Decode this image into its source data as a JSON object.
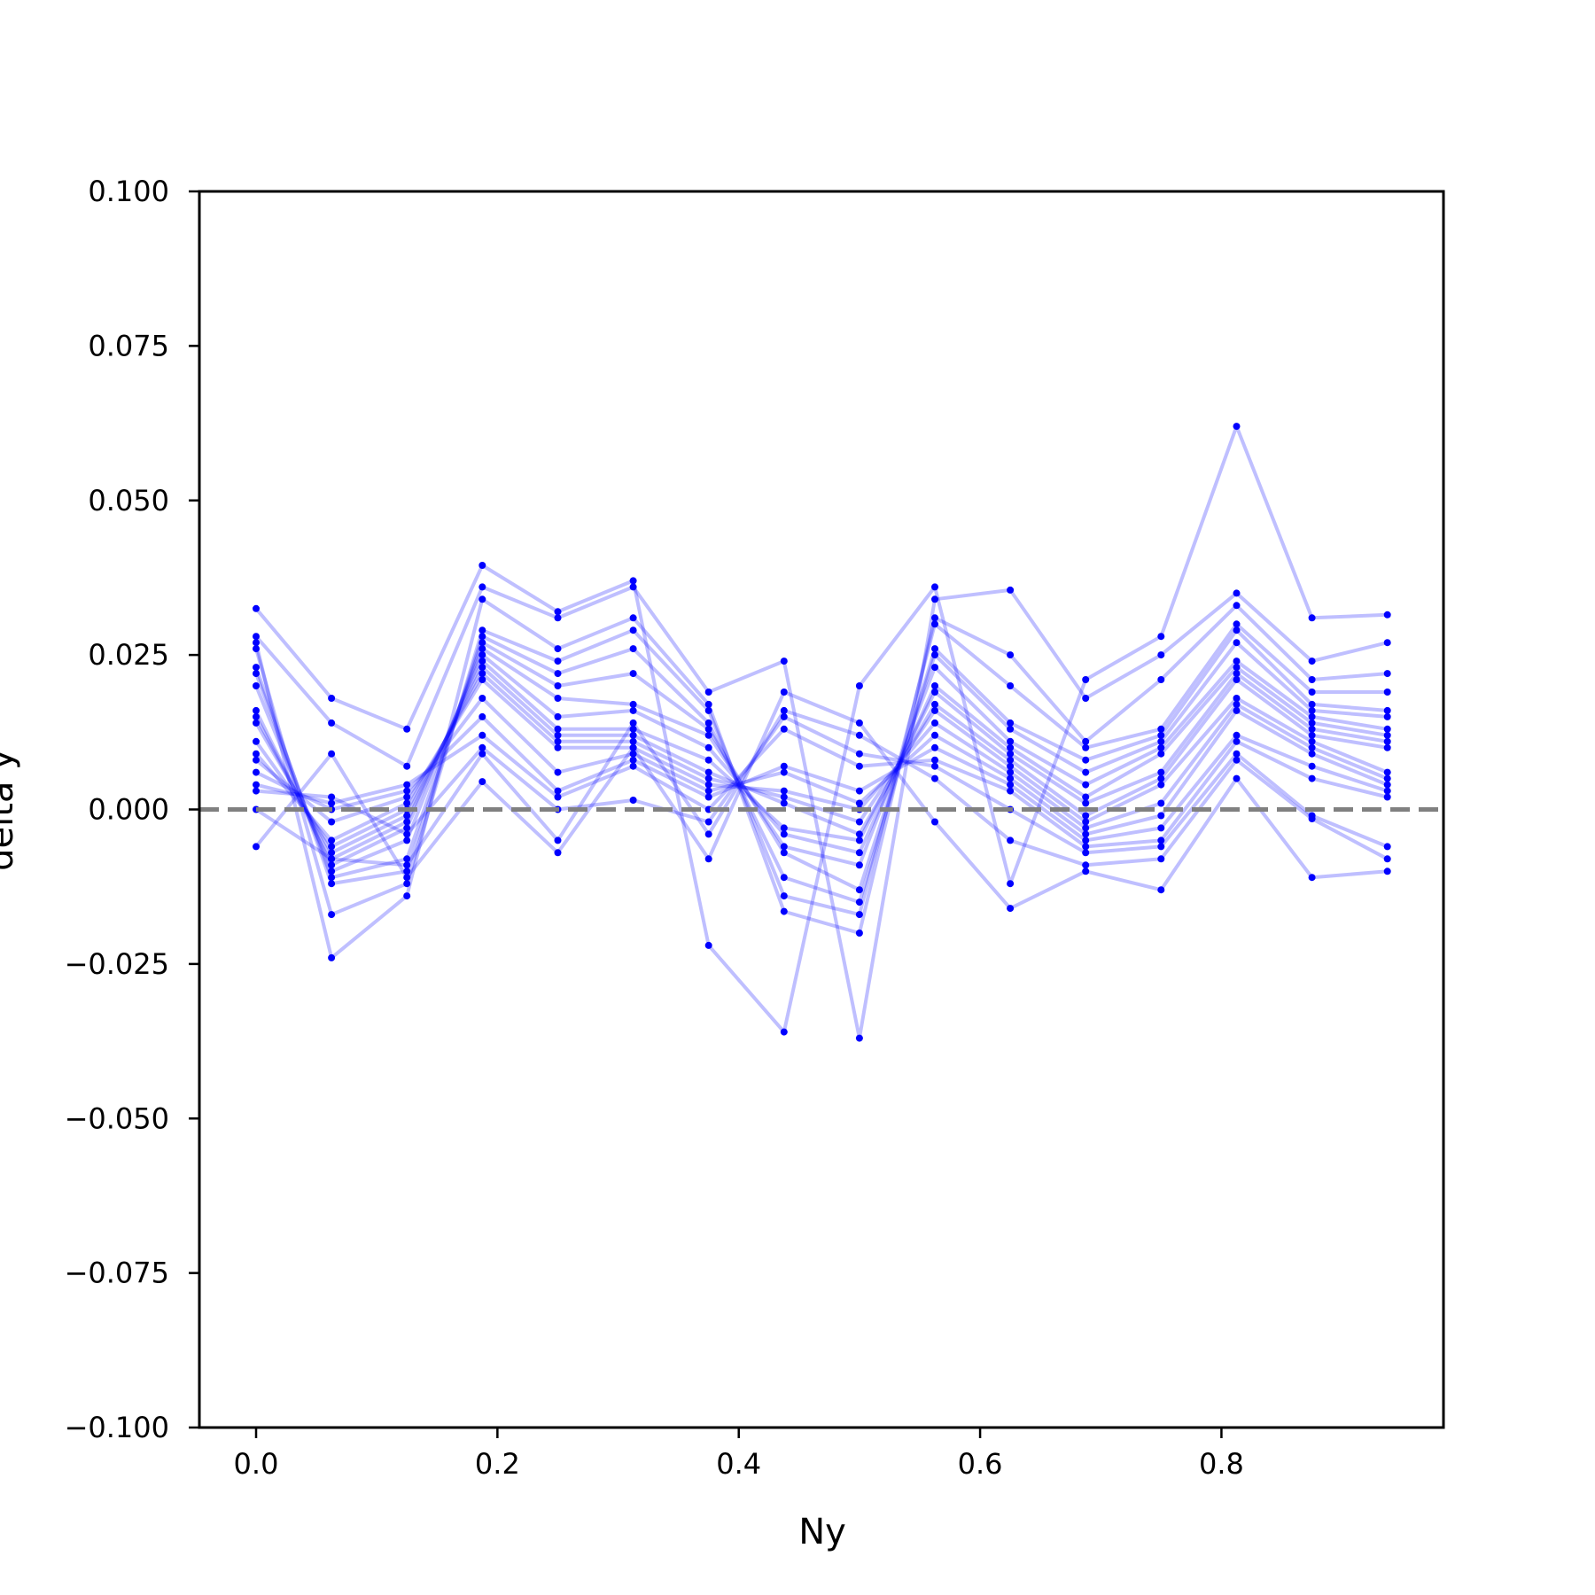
{
  "chart_data": {
    "type": "line",
    "xlabel": "Ny",
    "ylabel": "delta y",
    "xlim": [
      -0.047,
      0.984
    ],
    "ylim": [
      -0.1,
      0.1
    ],
    "xticks": [
      {
        "value": 0.0,
        "label": "0.0"
      },
      {
        "value": 0.2,
        "label": "0.2"
      },
      {
        "value": 0.4,
        "label": "0.4"
      },
      {
        "value": 0.6,
        "label": "0.6"
      },
      {
        "value": 0.8,
        "label": "0.8"
      }
    ],
    "yticks": [
      {
        "value": 0.1,
        "label": "0.100"
      },
      {
        "value": 0.075,
        "label": "0.075"
      },
      {
        "value": 0.05,
        "label": "0.050"
      },
      {
        "value": 0.025,
        "label": "0.025"
      },
      {
        "value": 0.0,
        "label": "0.000"
      },
      {
        "value": -0.025,
        "label": "−0.025"
      },
      {
        "value": -0.05,
        "label": "−0.050"
      },
      {
        "value": -0.075,
        "label": "−0.075"
      },
      {
        "value": -0.1,
        "label": "−0.100"
      }
    ],
    "grid": false,
    "line_color": "#0000ff",
    "marker_color": "#0000ff",
    "reference_line": {
      "y": 0.0,
      "style": "dashed",
      "color": "#808080"
    },
    "x": [
      0.0,
      0.0625,
      0.125,
      0.1875,
      0.25,
      0.3125,
      0.375,
      0.4375,
      0.5,
      0.5625,
      0.625,
      0.6875,
      0.75,
      0.8125,
      0.875,
      0.9375
    ],
    "series": [
      {
        "values": [
          0.0325,
          0.018,
          0.013,
          0.0395,
          0.032,
          0.037,
          -0.022,
          -0.036,
          0.02,
          0.036,
          -0.012,
          0.021,
          0.028,
          0.062,
          0.031,
          0.0315
        ]
      },
      {
        "values": [
          0.028,
          0.014,
          0.007,
          0.036,
          0.031,
          0.036,
          0.019,
          0.024,
          -0.037,
          0.034,
          0.0355,
          0.018,
          0.025,
          0.035,
          0.024,
          0.027
        ]
      },
      {
        "values": [
          0.027,
          -0.024,
          -0.014,
          0.034,
          0.026,
          0.031,
          0.017,
          -0.0165,
          -0.02,
          0.031,
          0.025,
          0.011,
          0.021,
          0.033,
          0.021,
          0.022
        ]
      },
      {
        "values": [
          0.026,
          -0.017,
          -0.012,
          0.029,
          0.024,
          0.029,
          0.016,
          -0.014,
          -0.017,
          0.03,
          0.02,
          0.01,
          0.013,
          0.03,
          0.019,
          0.019
        ]
      },
      {
        "values": [
          0.023,
          -0.012,
          -0.01,
          0.028,
          0.022,
          0.026,
          0.014,
          -0.011,
          -0.015,
          0.026,
          0.014,
          0.008,
          0.012,
          0.029,
          0.017,
          0.016
        ]
      },
      {
        "values": [
          0.022,
          -0.011,
          -0.008,
          0.027,
          0.02,
          0.022,
          0.013,
          -0.007,
          -0.013,
          0.025,
          0.013,
          0.006,
          0.011,
          0.027,
          0.016,
          0.015
        ]
      },
      {
        "values": [
          0.02,
          -0.01,
          -0.005,
          0.026,
          0.018,
          0.017,
          0.012,
          -0.006,
          -0.009,
          0.023,
          0.011,
          0.004,
          0.01,
          0.024,
          0.015,
          0.013
        ]
      },
      {
        "values": [
          0.016,
          -0.009,
          -0.003,
          0.025,
          0.015,
          0.016,
          0.01,
          -0.004,
          -0.007,
          0.02,
          0.01,
          0.002,
          0.009,
          0.023,
          0.014,
          0.012
        ]
      },
      {
        "values": [
          0.015,
          -0.008,
          -0.002,
          0.024,
          0.013,
          0.013,
          0.008,
          -0.003,
          -0.005,
          0.019,
          0.009,
          0.001,
          0.006,
          0.022,
          0.013,
          0.011
        ]
      },
      {
        "values": [
          0.014,
          -0.007,
          -0.001,
          0.023,
          0.012,
          0.012,
          0.006,
          0.001,
          -0.004,
          0.017,
          0.008,
          -0.001,
          0.005,
          0.021,
          0.012,
          0.01
        ]
      },
      {
        "values": [
          0.011,
          -0.006,
          0.0,
          0.022,
          0.011,
          0.011,
          0.005,
          0.002,
          -0.002,
          0.016,
          0.007,
          -0.002,
          0.004,
          0.018,
          0.011,
          0.006
        ]
      },
      {
        "values": [
          0.009,
          -0.005,
          0.001,
          0.021,
          0.01,
          0.01,
          0.004,
          0.003,
          0.0,
          0.014,
          0.006,
          -0.003,
          0.001,
          0.017,
          0.01,
          0.005
        ]
      },
      {
        "values": [
          0.008,
          -0.002,
          0.002,
          0.018,
          0.006,
          0.009,
          0.003,
          0.006,
          0.001,
          0.012,
          0.005,
          -0.004,
          -0.001,
          0.016,
          0.009,
          0.004
        ]
      },
      {
        "values": [
          0.006,
          0.0,
          0.003,
          0.015,
          0.003,
          0.008,
          0.002,
          0.007,
          0.003,
          0.01,
          0.004,
          -0.005,
          -0.003,
          0.012,
          0.007,
          0.003
        ]
      },
      {
        "values": [
          0.004,
          0.001,
          0.004,
          0.012,
          0.002,
          0.007,
          0.0,
          0.013,
          0.007,
          0.008,
          0.003,
          -0.006,
          -0.005,
          0.011,
          0.005,
          0.002
        ]
      },
      {
        "values": [
          0.003,
          0.002,
          -0.004,
          0.01,
          0.0,
          0.0015,
          -0.002,
          0.015,
          0.009,
          0.007,
          0.0,
          -0.007,
          -0.006,
          0.009,
          -0.001,
          -0.006
        ]
      },
      {
        "values": [
          0.0,
          -0.008,
          -0.009,
          0.009,
          -0.005,
          0.014,
          -0.004,
          0.016,
          0.012,
          0.005,
          -0.005,
          -0.009,
          -0.008,
          0.008,
          -0.0015,
          -0.008
        ]
      },
      {
        "values": [
          -0.006,
          0.009,
          -0.011,
          0.0045,
          -0.007,
          0.01,
          -0.008,
          0.019,
          0.014,
          -0.002,
          -0.016,
          -0.01,
          -0.013,
          0.005,
          -0.011,
          -0.01
        ]
      }
    ]
  }
}
